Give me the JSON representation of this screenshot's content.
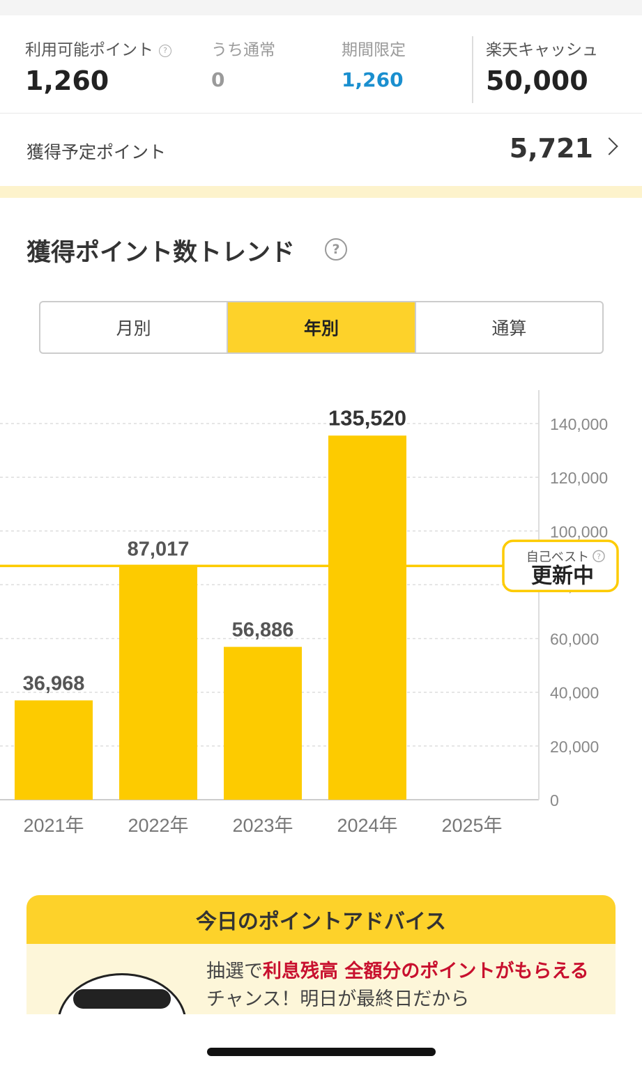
{
  "points": {
    "available_label": "利用可能ポイント",
    "available_help": "?",
    "available_value": "1,260",
    "regular_label": "うち通常",
    "regular_value": "0",
    "limited_label": "期間限定",
    "limited_value": "1,260",
    "cash_label": "楽天キャッシュ",
    "cash_value": "50,000"
  },
  "pending": {
    "label": "獲得予定ポイント",
    "value": "5,721"
  },
  "trend": {
    "title": "獲得ポイント数トレンド",
    "help": "?",
    "tabs": [
      {
        "label": "月別",
        "active": false
      },
      {
        "label": "年別",
        "active": true
      },
      {
        "label": "通算",
        "active": false
      }
    ]
  },
  "chart_data": {
    "type": "bar",
    "categories": [
      "2021年",
      "2022年",
      "2023年",
      "2024年",
      "2025年"
    ],
    "values": [
      36968,
      87017,
      56886,
      135520,
      null
    ],
    "value_labels": [
      "36,968",
      "87,017",
      "56,886",
      "135,520",
      ""
    ],
    "highlight_index": 3,
    "ylim": [
      0,
      140000
    ],
    "yticks": [
      0,
      20000,
      40000,
      60000,
      80000,
      100000,
      120000,
      140000
    ],
    "ytick_labels": [
      "0",
      "20,000",
      "40,000",
      "60,000",
      "80,000",
      "100,000",
      "120,000",
      "140,000"
    ],
    "grid": true,
    "y_axis_side": "right",
    "reference_line": {
      "value": 87017,
      "badge_top": "自己ベスト",
      "badge_help": "?",
      "badge_main": "更新中"
    },
    "colors": {
      "bar": "#fdcb00",
      "line": "#fdcb00",
      "label": "#555555",
      "highlight_label": "#333333",
      "grid": "#dddddd"
    }
  },
  "advice": {
    "title": "今日のポイントアドバイス",
    "text_plain_1": "抽選で",
    "text_red": "利息残高 全額分のポイントがもらえる",
    "text_plain_2": "チャンス！明日が最終日だから"
  }
}
